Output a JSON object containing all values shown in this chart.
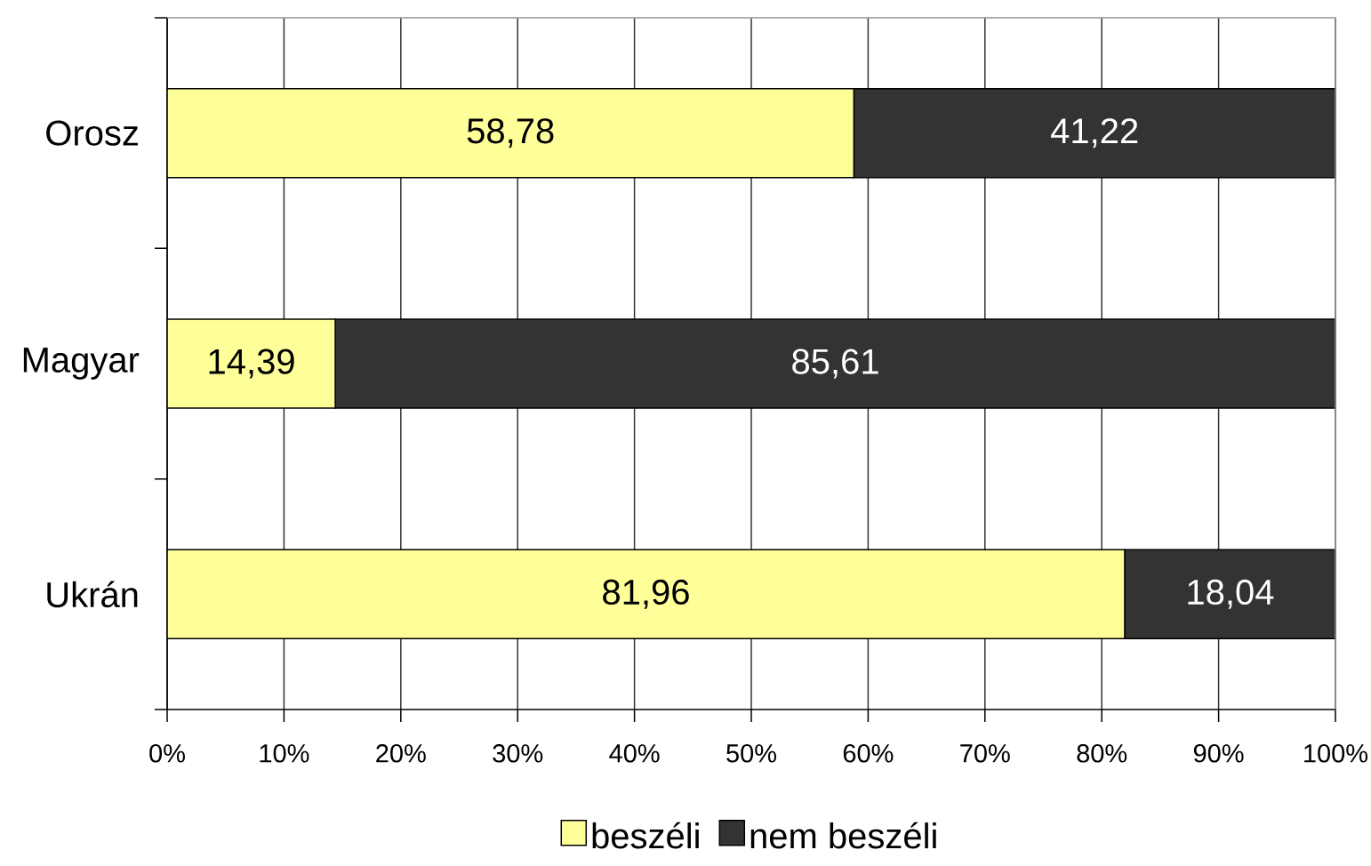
{
  "chart_data": {
    "type": "bar",
    "orientation": "horizontal",
    "stacked": true,
    "categories": [
      "Orosz",
      "Magyar",
      "Ukrán"
    ],
    "series": [
      {
        "name": "beszéli",
        "color": "#ffff99",
        "values": [
          58.78,
          14.39,
          81.96
        ],
        "value_labels": [
          "58,78",
          "14,39",
          "81,96"
        ]
      },
      {
        "name": "nem beszéli",
        "color": "#333333",
        "values": [
          41.22,
          85.61,
          18.04
        ],
        "value_labels": [
          "41,22",
          "85,61",
          "18,04"
        ]
      }
    ],
    "xlim": [
      0,
      100
    ],
    "xticks": [
      {
        "value": 0,
        "label": "0%"
      },
      {
        "value": 10,
        "label": "10%"
      },
      {
        "value": 20,
        "label": "20%"
      },
      {
        "value": 30,
        "label": "30%"
      },
      {
        "value": 40,
        "label": "40%"
      },
      {
        "value": 50,
        "label": "50%"
      },
      {
        "value": 60,
        "label": "60%"
      },
      {
        "value": 70,
        "label": "70%"
      },
      {
        "value": 80,
        "label": "80%"
      },
      {
        "value": 90,
        "label": "90%"
      },
      {
        "value": 100,
        "label": "100%"
      }
    ],
    "grid": "x",
    "legend": "bottom"
  }
}
